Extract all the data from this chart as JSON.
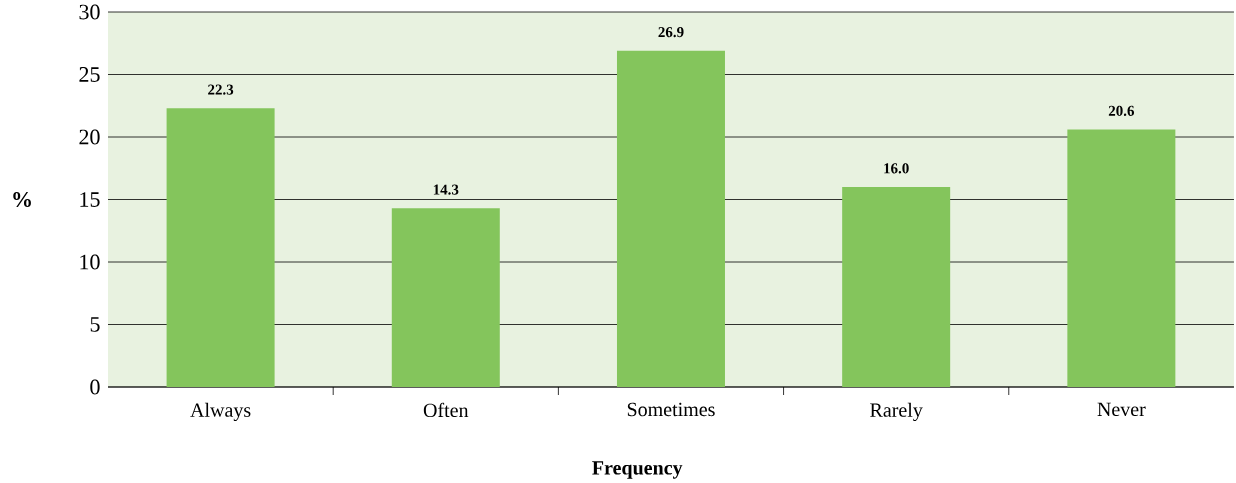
{
  "chart_data": {
    "type": "bar",
    "xlabel": "Frequency",
    "ylabel": "%",
    "categories": [
      "Always",
      "Often",
      "Sometimes",
      "Rarely",
      "Never"
    ],
    "values": [
      22.3,
      14.3,
      26.9,
      16.0,
      20.6
    ],
    "value_labels": [
      "22.3",
      "14.3",
      "26.9",
      "16.0",
      "20.6"
    ],
    "color": "#84c55c",
    "ylim": [
      0,
      30
    ],
    "yticks": [
      0,
      5,
      10,
      15,
      20,
      25,
      30
    ],
    "grid": "y"
  }
}
